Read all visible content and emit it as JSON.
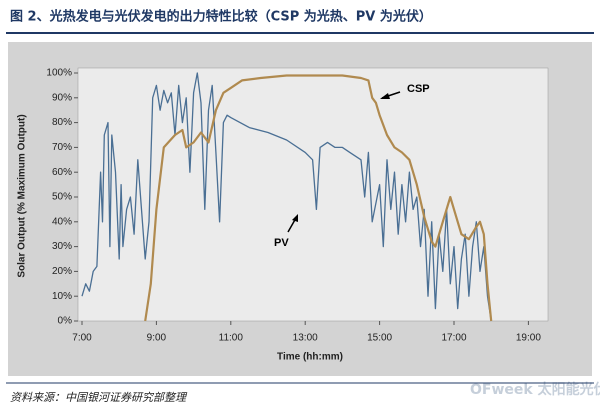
{
  "chart_data": {
    "type": "line",
    "title": "图 2、光热发电与光伏发电的出力特性比较（CSP 为光热、PV 为光伏）",
    "xlabel": "Time (hh:mm)",
    "ylabel": "Solar Output (% Maximum Output)",
    "source": "资料来源：中国银河证券研究部整理",
    "watermark": "OFweek 太阳能光伏网",
    "xlim": [
      7,
      19.4
    ],
    "ylim": [
      0,
      100
    ],
    "xticks": [
      {
        "value": 7,
        "label": "7:00"
      },
      {
        "value": 9,
        "label": "9:00"
      },
      {
        "value": 11,
        "label": "11:00"
      },
      {
        "value": 13,
        "label": "13:00"
      },
      {
        "value": 15,
        "label": "15:00"
      },
      {
        "value": 17,
        "label": "17:00"
      },
      {
        "value": 19,
        "label": "19:00"
      }
    ],
    "yticks": [
      {
        "value": 0,
        "label": "0%"
      },
      {
        "value": 10,
        "label": "10%"
      },
      {
        "value": 20,
        "label": "20%"
      },
      {
        "value": 30,
        "label": "30%"
      },
      {
        "value": 40,
        "label": "40%"
      },
      {
        "value": 50,
        "label": "50%"
      },
      {
        "value": 60,
        "label": "60%"
      },
      {
        "value": 70,
        "label": "70%"
      },
      {
        "value": 80,
        "label": "80%"
      },
      {
        "value": 90,
        "label": "90%"
      },
      {
        "value": 100,
        "label": "100%"
      }
    ],
    "series": [
      {
        "name": "CSP",
        "color": "#b08a4f",
        "x": [
          8.7,
          8.85,
          9.0,
          9.2,
          9.5,
          9.7,
          9.8,
          10.0,
          10.2,
          10.4,
          10.6,
          10.8,
          11.0,
          11.3,
          11.8,
          12.5,
          13.5,
          14.0,
          14.5,
          14.7,
          14.8,
          14.9,
          15.0,
          15.2,
          15.4,
          15.6,
          15.8,
          16.0,
          16.2,
          16.4,
          16.5,
          16.7,
          16.9,
          17.0,
          17.2,
          17.4,
          17.6,
          17.7,
          17.8,
          17.9,
          18.0
        ],
        "values": [
          0,
          15,
          45,
          70,
          75,
          77,
          70,
          72,
          76,
          72,
          85,
          92,
          94,
          97,
          98,
          99,
          99,
          99,
          98,
          97,
          90,
          88,
          83,
          75,
          70,
          68,
          65,
          55,
          42,
          32,
          30,
          40,
          50,
          45,
          35,
          33,
          38,
          40,
          35,
          15,
          0
        ]
      },
      {
        "name": "PV",
        "color": "#4a6f94",
        "x": [
          7.0,
          7.1,
          7.2,
          7.3,
          7.4,
          7.5,
          7.55,
          7.6,
          7.7,
          7.75,
          7.8,
          7.9,
          8.0,
          8.05,
          8.1,
          8.2,
          8.3,
          8.4,
          8.5,
          8.6,
          8.7,
          8.8,
          8.9,
          9.0,
          9.1,
          9.2,
          9.3,
          9.4,
          9.5,
          9.6,
          9.7,
          9.8,
          9.9,
          10.0,
          10.1,
          10.2,
          10.3,
          10.4,
          10.5,
          10.6,
          10.7,
          10.8,
          10.9,
          11.0,
          11.5,
          12.0,
          12.5,
          13.0,
          13.2,
          13.3,
          13.4,
          13.6,
          13.8,
          14.0,
          14.2,
          14.5,
          14.6,
          14.7,
          14.8,
          15.0,
          15.1,
          15.2,
          15.3,
          15.4,
          15.5,
          15.6,
          15.7,
          15.8,
          15.9,
          16.0,
          16.1,
          16.2,
          16.3,
          16.4,
          16.5,
          16.6,
          16.7,
          16.8,
          16.9,
          17.0,
          17.1,
          17.2,
          17.3,
          17.4,
          17.5,
          17.6,
          17.7,
          17.8,
          17.9,
          18.0
        ],
        "values": [
          10,
          15,
          12,
          20,
          22,
          60,
          40,
          75,
          80,
          30,
          75,
          60,
          25,
          55,
          30,
          45,
          50,
          35,
          65,
          45,
          25,
          40,
          90,
          95,
          85,
          93,
          88,
          92,
          75,
          95,
          80,
          90,
          60,
          92,
          100,
          88,
          45,
          85,
          95,
          68,
          40,
          80,
          83,
          82,
          78,
          76,
          73,
          68,
          65,
          45,
          70,
          72,
          70,
          70,
          68,
          65,
          50,
          68,
          40,
          55,
          30,
          65,
          45,
          60,
          35,
          55,
          40,
          60,
          45,
          50,
          30,
          45,
          10,
          40,
          5,
          35,
          20,
          45,
          15,
          30,
          5,
          25,
          35,
          10,
          30,
          40,
          20,
          30,
          10,
          0
        ]
      }
    ]
  }
}
